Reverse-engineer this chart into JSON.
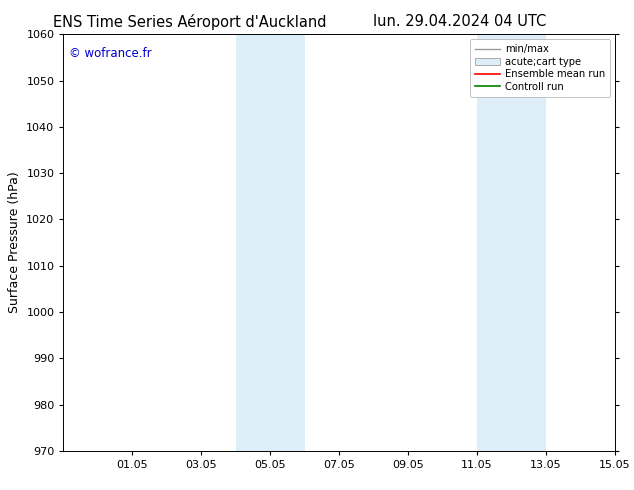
{
  "title_left": "ENS Time Series Aéroport d'Auckland",
  "title_right": "lun. 29.04.2024 04 UTC",
  "ylabel": "Surface Pressure (hPa)",
  "watermark": "© wofrance.fr",
  "ylim": [
    970,
    1060
  ],
  "yticks": [
    970,
    980,
    990,
    1000,
    1010,
    1020,
    1030,
    1040,
    1050,
    1060
  ],
  "xlim": [
    0,
    16
  ],
  "xtick_labels": [
    "01.05",
    "03.05",
    "05.05",
    "07.05",
    "09.05",
    "11.05",
    "13.05",
    "15.05"
  ],
  "xtick_positions": [
    2,
    4,
    6,
    8,
    10,
    12,
    14,
    16
  ],
  "shaded_bands": [
    {
      "x_start": 5,
      "x_end": 7,
      "color": "#ddeef8"
    },
    {
      "x_start": 12,
      "x_end": 14,
      "color": "#ddeef8"
    }
  ],
  "bg_color": "#ffffff",
  "plot_bg_color": "#ffffff",
  "title_fontsize": 10.5,
  "label_fontsize": 9,
  "tick_fontsize": 8,
  "watermark_color": "#0000cc",
  "legend_gray_line": "#999999",
  "legend_band_color": "#ddeef8",
  "legend_band_edge": "#aaaaaa",
  "legend_red": "#ff0000",
  "legend_green": "#008000"
}
